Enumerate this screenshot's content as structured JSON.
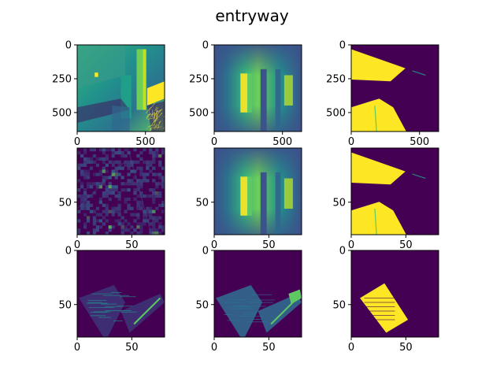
{
  "figure": {
    "title": "entryway",
    "colormap": "viridis",
    "colors": {
      "dark": "#440154",
      "mid": "#21918c",
      "green": "#5ec962",
      "yellow": "#fde725",
      "background": "#ffffff"
    }
  },
  "chart_data": [
    {
      "type": "heatmap",
      "name": "depth-image",
      "content": "depth",
      "xlim": [
        0,
        640
      ],
      "ylim": [
        0,
        640
      ],
      "xticks": [
        {
          "v": 0,
          "label": "0"
        },
        {
          "v": 500,
          "label": "500"
        }
      ],
      "yticks": [
        {
          "v": 0,
          "label": "0"
        },
        {
          "v": 250,
          "label": "250"
        },
        {
          "v": 500,
          "label": "500"
        }
      ]
    },
    {
      "type": "heatmap",
      "name": "smooth-depth-image",
      "content": "smooth",
      "xlim": [
        0,
        640
      ],
      "ylim": [
        0,
        640
      ],
      "xticks": [
        {
          "v": 0,
          "label": "0"
        },
        {
          "v": 500,
          "label": "500"
        }
      ],
      "yticks": [
        {
          "v": 0,
          "label": "0"
        },
        {
          "v": 250,
          "label": "250"
        },
        {
          "v": 500,
          "label": "500"
        }
      ]
    },
    {
      "type": "heatmap",
      "name": "mask-image",
      "content": "mask",
      "xlim": [
        0,
        640
      ],
      "ylim": [
        0,
        640
      ],
      "xticks": [
        {
          "v": 0,
          "label": "0"
        },
        {
          "v": 500,
          "label": "500"
        }
      ],
      "yticks": [
        {
          "v": 0,
          "label": "0"
        },
        {
          "v": 250,
          "label": "250"
        },
        {
          "v": 500,
          "label": "500"
        }
      ]
    },
    {
      "type": "heatmap",
      "name": "noise-map",
      "content": "noise",
      "xlim": [
        0,
        80
      ],
      "ylim": [
        0,
        80
      ],
      "xticks": [
        {
          "v": 0,
          "label": "0"
        },
        {
          "v": 50,
          "label": "50"
        }
      ],
      "yticks": [
        {
          "v": 50,
          "label": "50"
        }
      ]
    },
    {
      "type": "heatmap",
      "name": "downsampled-depth",
      "content": "smooth",
      "xlim": [
        0,
        80
      ],
      "ylim": [
        0,
        80
      ],
      "xticks": [
        {
          "v": 0,
          "label": "0"
        },
        {
          "v": 50,
          "label": "50"
        }
      ],
      "yticks": [
        {
          "v": 50,
          "label": "50"
        }
      ]
    },
    {
      "type": "heatmap",
      "name": "downsampled-mask",
      "content": "mask",
      "xlim": [
        0,
        80
      ],
      "ylim": [
        0,
        80
      ],
      "xticks": [
        {
          "v": 0,
          "label": "0"
        },
        {
          "v": 50,
          "label": "50"
        }
      ],
      "yticks": [
        {
          "v": 50,
          "label": "50"
        }
      ]
    },
    {
      "type": "heatmap",
      "name": "projected-points",
      "content": "proj_dark",
      "xlim": [
        0,
        80
      ],
      "ylim": [
        0,
        80
      ],
      "xticks": [
        {
          "v": 0,
          "label": "0"
        },
        {
          "v": 50,
          "label": "50"
        }
      ],
      "yticks": [
        {
          "v": 0,
          "label": "0"
        },
        {
          "v": 50,
          "label": "50"
        }
      ]
    },
    {
      "type": "heatmap",
      "name": "projected-depth",
      "content": "proj_teal",
      "xlim": [
        0,
        80
      ],
      "ylim": [
        0,
        80
      ],
      "xticks": [
        {
          "v": 0,
          "label": "0"
        },
        {
          "v": 50,
          "label": "50"
        }
      ],
      "yticks": [
        {
          "v": 0,
          "label": "0"
        },
        {
          "v": 50,
          "label": "50"
        }
      ]
    },
    {
      "type": "heatmap",
      "name": "projected-mask",
      "content": "proj_mask",
      "xlim": [
        0,
        80
      ],
      "ylim": [
        0,
        80
      ],
      "xticks": [
        {
          "v": 0,
          "label": "0"
        },
        {
          "v": 50,
          "label": "50"
        }
      ],
      "yticks": [
        {
          "v": 0,
          "label": "0"
        },
        {
          "v": 50,
          "label": "50"
        }
      ]
    }
  ]
}
